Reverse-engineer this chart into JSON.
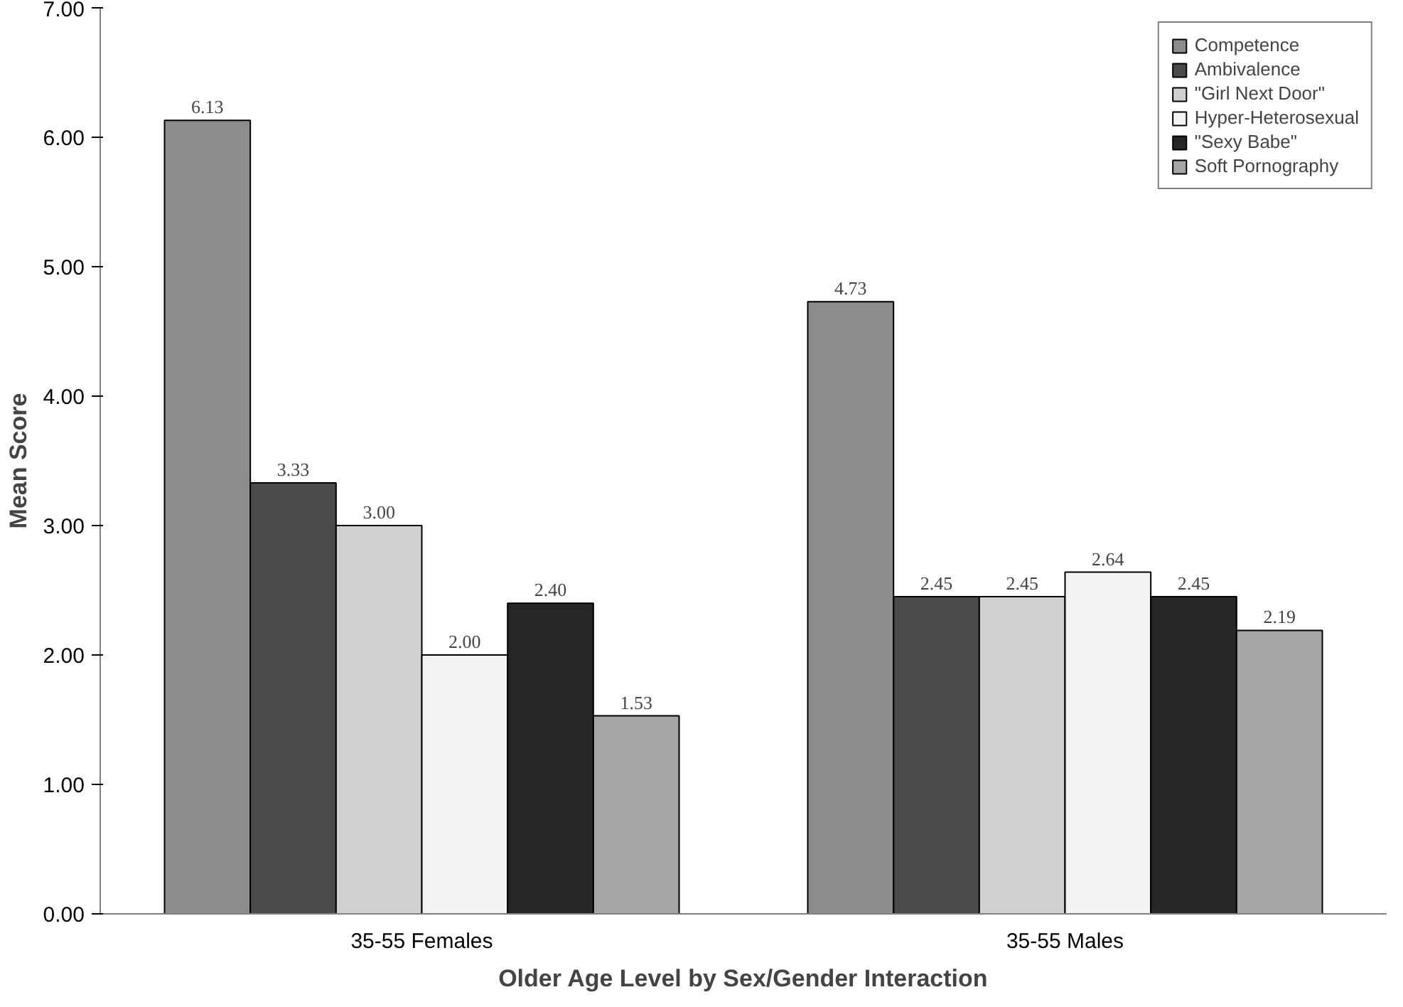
{
  "chart_data": {
    "type": "bar",
    "xlabel": "Older Age Level by Sex/Gender Interaction",
    "ylabel": "Mean Score",
    "categories": [
      "35-55 Females",
      "35-55 Males"
    ],
    "series": [
      {
        "name": "Competence",
        "color": "#8c8c8c",
        "values": [
          6.13,
          4.73
        ],
        "value_labels": [
          "6.13",
          "4.73"
        ]
      },
      {
        "name": "Ambivalence",
        "color": "#4a4a4a",
        "values": [
          3.33,
          2.45
        ],
        "value_labels": [
          "3.33",
          "2.45"
        ]
      },
      {
        "name": "\"Girl Next Door\"",
        "color": "#d0d0d0",
        "values": [
          3.0,
          2.45
        ],
        "value_labels": [
          "3.00",
          "2.45"
        ]
      },
      {
        "name": "Hyper-Heterosexual",
        "color": "#f2f2f2",
        "values": [
          2.0,
          2.64
        ],
        "value_labels": [
          "2.00",
          "2.64"
        ]
      },
      {
        "name": "\"Sexy Babe\"",
        "color": "#262626",
        "values": [
          2.4,
          2.45
        ],
        "value_labels": [
          "2.40",
          "2.45"
        ]
      },
      {
        "name": "Soft Pornography",
        "color": "#a6a6a6",
        "values": [
          1.53,
          2.19
        ],
        "value_labels": [
          "1.53",
          "2.19"
        ]
      }
    ],
    "ylim": [
      0,
      7
    ],
    "yticks": [
      {
        "value": 0,
        "label": "0.00"
      },
      {
        "value": 1,
        "label": "1.00"
      },
      {
        "value": 2,
        "label": "2.00"
      },
      {
        "value": 3,
        "label": "3.00"
      },
      {
        "value": 4,
        "label": "4.00"
      },
      {
        "value": 5,
        "label": "5.00"
      },
      {
        "value": 6,
        "label": "6.00"
      },
      {
        "value": 7,
        "label": "7.00"
      }
    ],
    "grid": false,
    "legend": "top right"
  }
}
